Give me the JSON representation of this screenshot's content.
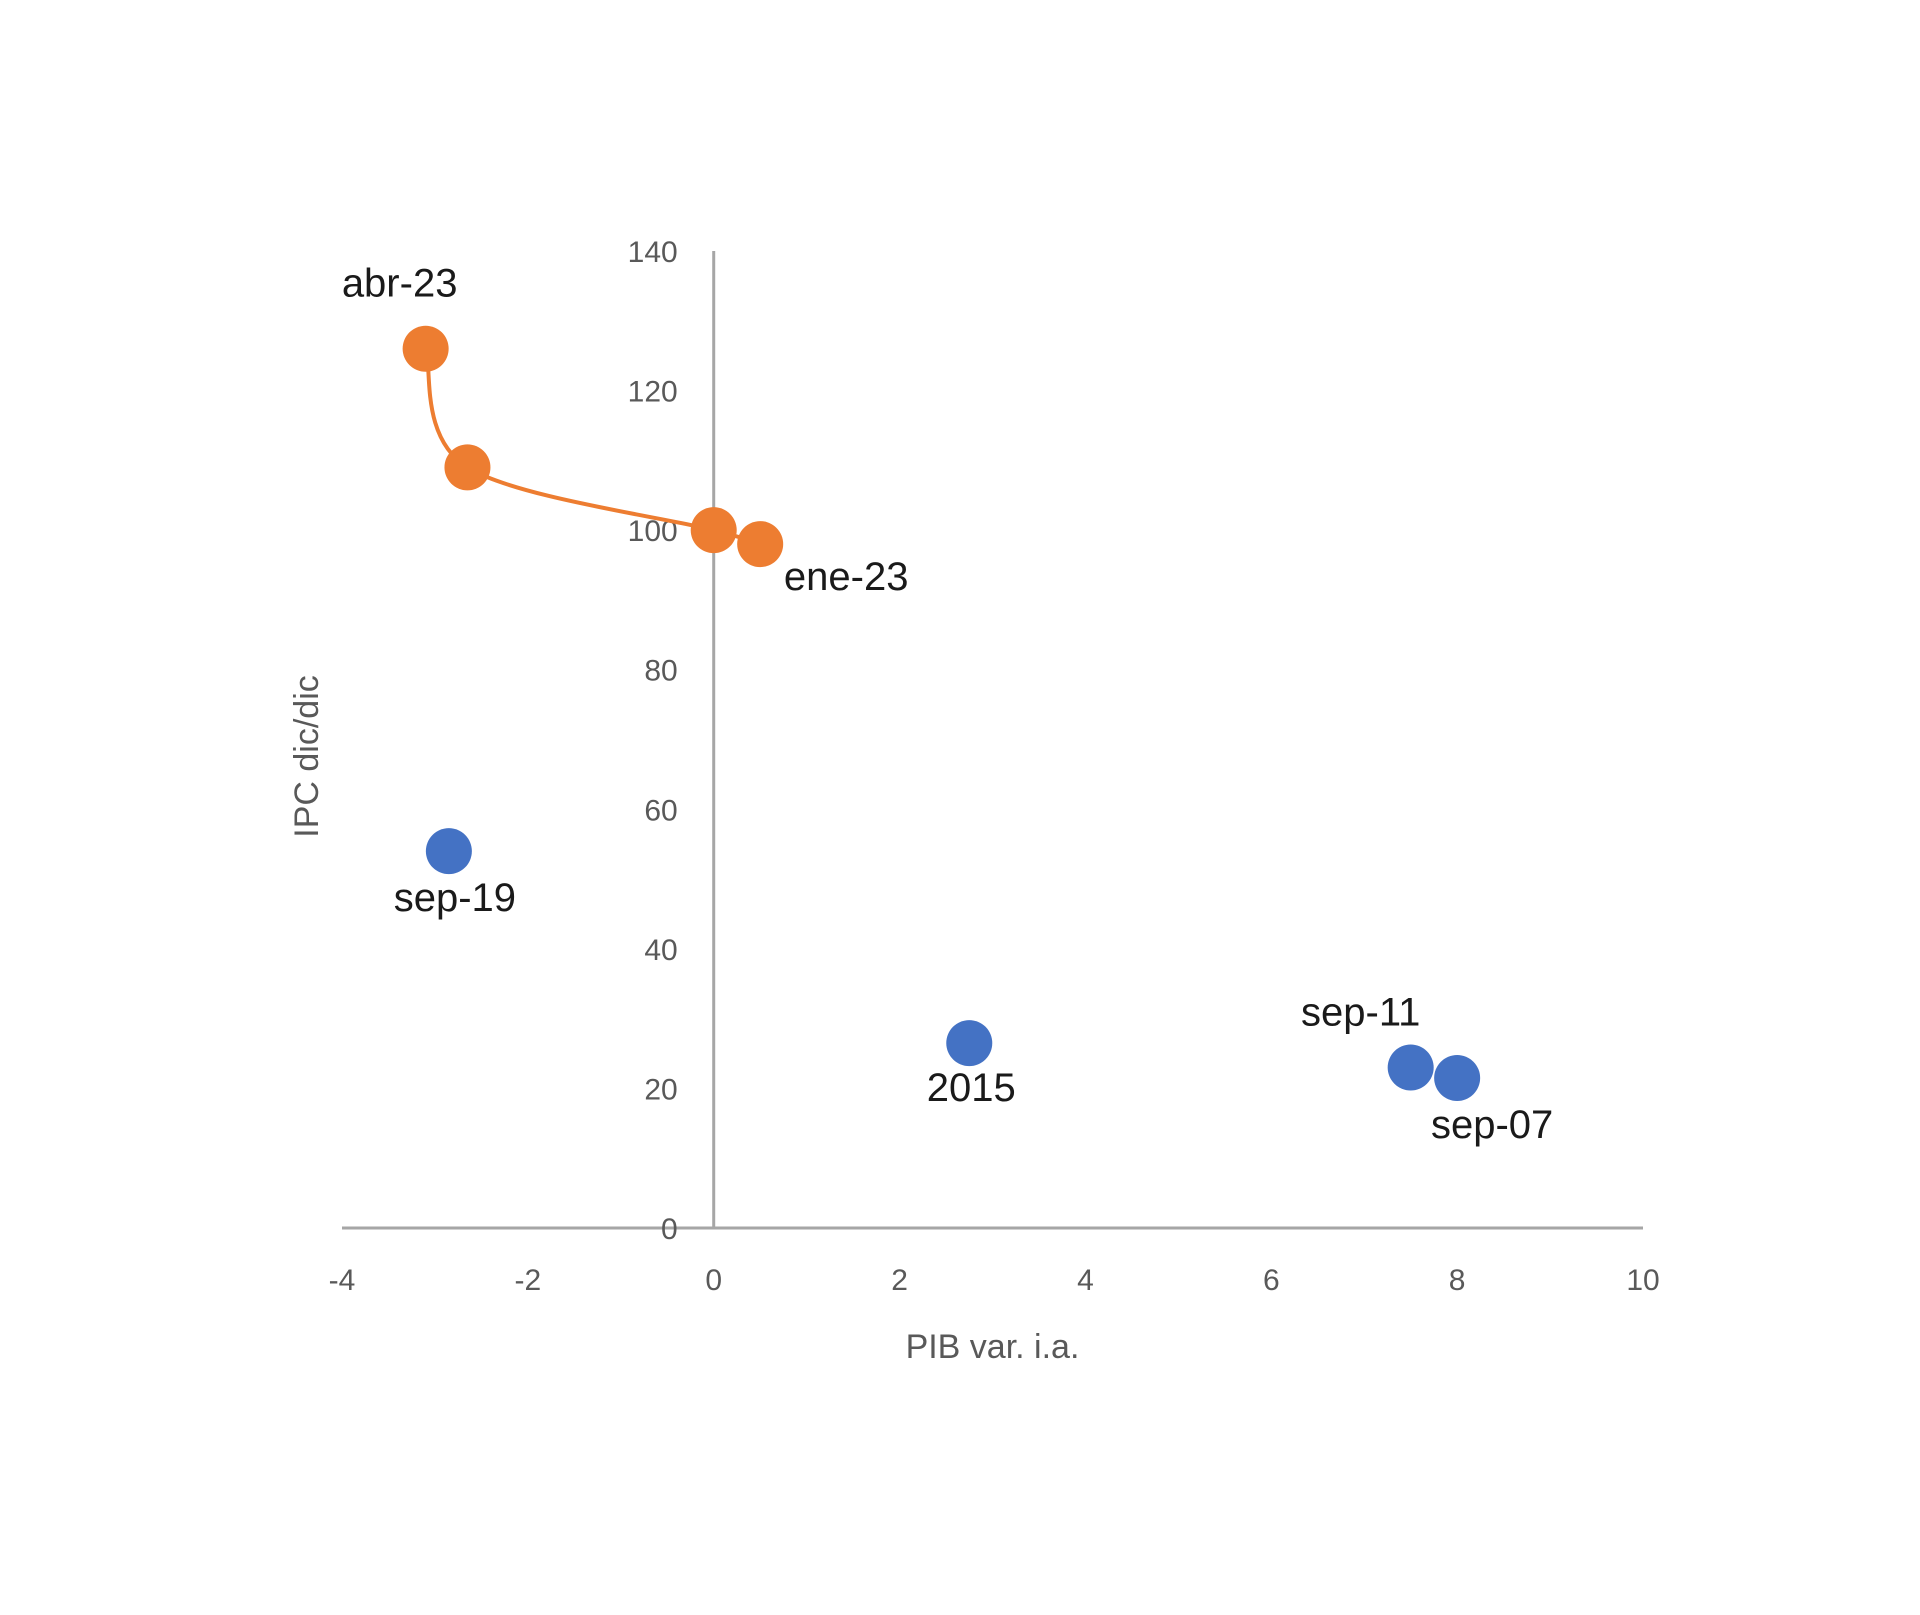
{
  "chart_data": {
    "type": "scatter",
    "xlabel": "PIB var. i.a.",
    "ylabel": "IPC dic/dic",
    "xlim": [
      -4,
      10
    ],
    "ylim": [
      0,
      140
    ],
    "xticks": [
      "-4",
      "-2",
      "0",
      "2",
      "4",
      "6",
      "8",
      "10"
    ],
    "yticks": [
      "0",
      "20",
      "40",
      "60",
      "80",
      "100",
      "120",
      "140"
    ],
    "grid": false,
    "legend": "none",
    "series": [
      {
        "color": "#ED7D31",
        "connected": true,
        "points": [
          {
            "x": 0.5,
            "y": 98,
            "label": "ene-23"
          },
          {
            "x": 0.0,
            "y": 100,
            "label": ""
          },
          {
            "x": -2.65,
            "y": 109,
            "label": ""
          },
          {
            "x": -3.1,
            "y": 126,
            "label": "abr-23"
          }
        ]
      },
      {
        "color": "#4472C4",
        "connected": false,
        "points": [
          {
            "x": -2.85,
            "y": 54,
            "label": "sep-19"
          },
          {
            "x": 2.75,
            "y": 26.5,
            "label": "2015"
          },
          {
            "x": 7.5,
            "y": 23,
            "label": "sep-11"
          },
          {
            "x": 8.0,
            "y": 21.5,
            "label": "sep-07"
          }
        ]
      }
    ]
  }
}
